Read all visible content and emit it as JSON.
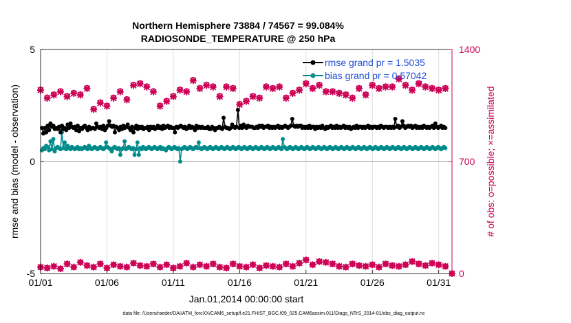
{
  "chart_data": {
    "type": "line",
    "title_line1": "Northern Hemisphere 73884 / 74567 = 99.084%",
    "title_line2": "RADIOSONDE_TEMPERATURE @ 250 hPa",
    "xlabel": "Jan.01,2014 00:00:00 start",
    "ylabel_left": "rmse and bias (model - observation)",
    "ylabel_right": "# of obs: o=possible; ×=assimilated",
    "footnote": "data file: /Users/raeder/DAI/ATM_forcXX/CAM6_setup/f.e21.FHIST_BGC.f09_025.CAM6assim.011/Diags_NTrS_2014-01/obs_diag_output.nc",
    "xlim": [
      1,
      32
    ],
    "ylim_left": [
      -5,
      5
    ],
    "ylim_right": [
      0,
      1400
    ],
    "x_ticks": [
      1,
      6,
      11,
      16,
      21,
      26,
      31
    ],
    "x_tick_labels": [
      "01/01",
      "01/06",
      "01/11",
      "01/16",
      "01/21",
      "01/26",
      "01/31"
    ],
    "y_left_ticks": [
      -5,
      0,
      5
    ],
    "y_left_tick_labels": [
      "-5",
      "0",
      "5"
    ],
    "y_right_ticks": [
      0,
      700,
      1400
    ],
    "y_right_tick_labels": [
      "0",
      "700",
      "1400"
    ],
    "grid": "vertical",
    "legend_position": "top-right",
    "colors": {
      "rmse": "#000000",
      "bias": "#008b8b",
      "obs": "#cc0055",
      "axis_right": "#cc0055",
      "legend_text": "#1f4fd8",
      "zero_line": "#999999"
    },
    "series": [
      {
        "name": "rmse grand pr = 1.5035",
        "axis": "left",
        "values": [
          1.5,
          1.25,
          1.5,
          1.3,
          1.6,
          1.4,
          1.7,
          1.55,
          1.6,
          1.45,
          1.5,
          1.45,
          1.55,
          1.3,
          1.6,
          1.45,
          1.5,
          1.4,
          1.65,
          1.5,
          1.7,
          1.55,
          1.5,
          1.55,
          1.4,
          1.6,
          1.35,
          1.5,
          1.45,
          1.55,
          1.6,
          1.5,
          1.4,
          1.55,
          1.45,
          1.5,
          1.5,
          1.45,
          1.7,
          1.55,
          1.5,
          1.55,
          1.45,
          1.6,
          1.4,
          1.5,
          1.6,
          1.8,
          1.6,
          1.55,
          1.6,
          1.3,
          1.55,
          1.5,
          1.4,
          1.55,
          1.45,
          1.6,
          1.5,
          1.55,
          1.65,
          1.5,
          1.4,
          1.55,
          1.3,
          1.5,
          1.6,
          1.45,
          1.55,
          1.5,
          1.55,
          1.45,
          1.5,
          1.5,
          1.55,
          1.4,
          1.55,
          1.5,
          1.55,
          1.45,
          1.5,
          1.6,
          1.5,
          1.55,
          1.45,
          1.6,
          1.5,
          1.55,
          1.6,
          1.5,
          1.55,
          1.5,
          1.5,
          1.3,
          1.55,
          1.5,
          1.55,
          1.6,
          1.55,
          1.5,
          1.55,
          1.45,
          1.5,
          1.6,
          1.5,
          1.55,
          1.5,
          1.4,
          1.6,
          1.5,
          1.55,
          1.5,
          1.55,
          1.5,
          1.5,
          1.5,
          1.55,
          1.45,
          1.45,
          1.55,
          1.5,
          1.4,
          1.5,
          1.5,
          1.55,
          1.5,
          1.45,
          1.95,
          1.55,
          1.5,
          1.5,
          1.45,
          1.5,
          1.65,
          1.55,
          1.5,
          1.55,
          2.3,
          1.5,
          1.6,
          1.5,
          1.65,
          1.55,
          1.5,
          1.6,
          1.55,
          1.55,
          1.55,
          1.5,
          1.5,
          1.55,
          1.5,
          1.6,
          1.55,
          1.6,
          1.5,
          1.55,
          1.55,
          1.6,
          1.5,
          1.55,
          1.5,
          1.55,
          1.5,
          1.55,
          1.6,
          1.5,
          1.55,
          1.5,
          1.55,
          1.6,
          1.55,
          1.5,
          1.55,
          1.6,
          1.9,
          1.6,
          1.55,
          1.6,
          1.55,
          1.6,
          1.6,
          1.5,
          1.55,
          1.5,
          1.55,
          1.5,
          1.6,
          1.5,
          1.55,
          1.55,
          1.45,
          1.55,
          1.5,
          1.55,
          1.5,
          1.6,
          1.5,
          1.45,
          1.55,
          1.5,
          1.55,
          1.6,
          1.5,
          1.55,
          1.5,
          1.6,
          1.5,
          1.55,
          1.5,
          1.55,
          1.6,
          1.5,
          1.55,
          1.5,
          1.55,
          1.45,
          1.5,
          1.55,
          1.5,
          1.6,
          1.5,
          1.55,
          1.55,
          1.5,
          1.55,
          1.5,
          1.55,
          1.6,
          1.5,
          1.55,
          1.5,
          1.55,
          1.55,
          1.5,
          1.55,
          1.5,
          1.6,
          1.55,
          1.5,
          1.55,
          1.55,
          1.5,
          1.55,
          1.5,
          1.55,
          1.5,
          1.9,
          1.55,
          1.6,
          1.5,
          1.55,
          1.8,
          1.6,
          1.5,
          1.55,
          1.6,
          1.55,
          1.6,
          1.5,
          1.55,
          1.6,
          1.5,
          1.55,
          1.5,
          1.55,
          1.5,
          1.6,
          1.55,
          1.5,
          1.55,
          1.5,
          1.55,
          1.6,
          1.5,
          1.7,
          1.55,
          1.5,
          1.55,
          1.6,
          1.5,
          1.55,
          1.5
        ]
      },
      {
        "name": "bias grand pr = 0.57042",
        "axis": "left",
        "values": [
          0.5,
          0.6,
          0.55,
          0.7,
          0.65,
          0.5,
          0.9,
          0.55,
          1.0,
          0.45,
          0.6,
          0.65,
          0.6,
          0.55,
          1.3,
          0.6,
          0.85,
          0.55,
          0.7,
          0.6,
          0.55,
          0.65,
          0.6,
          0.55,
          0.6,
          0.65,
          0.55,
          0.6,
          0.55,
          0.6,
          0.65,
          0.6,
          0.55,
          0.7,
          0.6,
          0.55,
          0.6,
          0.65,
          0.6,
          0.55,
          0.6,
          0.65,
          0.6,
          0.55,
          0.6,
          0.85,
          0.65,
          0.6,
          0.55,
          0.45,
          0.6,
          0.65,
          0.6,
          0.55,
          0.6,
          0.3,
          0.55,
          0.6,
          0.9,
          0.55,
          0.6,
          0.65,
          0.6,
          0.55,
          0.6,
          0.3,
          0.55,
          0.85,
          0.3,
          0.6,
          0.55,
          0.65,
          0.6,
          0.55,
          0.6,
          0.65,
          0.6,
          0.55,
          0.6,
          0.65,
          0.6,
          0.55,
          0.6,
          0.65,
          0.55,
          0.6,
          0.55,
          0.5,
          0.6,
          0.65,
          0.6,
          0.55,
          0.6,
          0.65,
          0.6,
          0.55,
          0.6,
          0.0,
          0.55,
          0.6,
          0.65,
          0.6,
          0.55,
          0.6,
          0.65,
          0.6,
          0.55,
          0.6,
          0.65,
          0.6,
          0.85,
          0.6,
          0.55,
          0.6,
          0.65,
          0.6,
          0.55,
          0.6,
          0.65,
          0.6,
          0.55,
          0.6,
          0.65,
          0.6,
          0.55,
          0.6,
          0.65,
          0.6,
          0.55,
          0.6,
          0.65,
          0.6,
          0.55,
          0.6,
          0.65,
          0.6,
          0.55,
          0.6,
          0.65,
          0.6,
          0.55,
          0.6,
          0.65,
          0.6,
          0.55,
          0.6,
          0.65,
          0.6,
          0.55,
          0.6,
          0.65,
          0.6,
          0.55,
          0.6,
          0.65,
          0.6,
          0.55,
          0.6,
          0.65,
          0.6,
          0.55,
          0.6,
          0.65,
          0.6,
          0.55,
          0.6,
          0.65,
          0.6,
          0.55,
          1.0,
          0.65,
          0.6,
          0.55,
          0.6,
          0.65,
          0.6,
          0.55,
          0.6,
          0.65,
          0.6,
          0.55,
          0.6,
          0.65,
          0.6,
          0.55,
          0.6,
          0.65,
          0.6,
          0.55,
          0.6,
          0.65,
          0.6,
          0.55,
          0.6,
          0.65,
          0.6,
          0.55,
          0.6,
          0.65,
          0.6,
          0.55,
          0.6,
          0.65,
          0.6,
          0.55,
          0.6,
          0.65,
          0.6,
          0.55,
          0.6,
          0.65,
          0.6,
          0.55,
          0.6,
          0.65,
          0.6,
          0.55,
          0.6,
          0.65,
          0.6,
          0.55,
          0.6,
          0.65,
          0.6,
          0.55,
          0.6,
          0.65,
          0.6,
          0.55,
          0.6,
          0.65,
          0.6,
          0.55,
          0.6,
          0.65,
          0.6,
          0.55,
          0.6,
          0.65,
          0.6,
          0.55,
          0.6,
          0.65,
          0.6,
          0.55,
          0.6,
          0.65,
          0.6,
          0.55,
          0.6,
          0.65,
          0.6,
          0.55,
          0.6,
          0.65,
          0.6,
          0.55,
          0.6,
          0.65,
          0.6,
          0.55,
          0.6,
          0.65,
          0.6,
          0.55,
          0.6,
          0.65,
          0.6,
          0.55,
          0.6,
          0.65,
          0.6,
          0.55,
          0.6,
          0.65,
          0.6,
          0.55,
          0.6,
          0.65,
          0.6,
          0.55,
          0.6,
          0.65,
          0.6
        ]
      }
    ],
    "obs_counts": {
      "axis": "right",
      "x": [
        1.0,
        1.5,
        2.0,
        2.5,
        3.0,
        3.5,
        4.0,
        4.5,
        5.0,
        5.5,
        6.0,
        6.5,
        7.0,
        7.5,
        8.0,
        8.5,
        9.0,
        9.5,
        10.0,
        10.5,
        11.0,
        11.5,
        12.0,
        12.5,
        13.0,
        13.5,
        14.0,
        14.5,
        15.0,
        15.5,
        16.0,
        16.5,
        17.0,
        17.5,
        18.0,
        18.5,
        19.0,
        19.5,
        20.0,
        20.5,
        21.0,
        21.5,
        22.0,
        22.5,
        23.0,
        23.5,
        24.0,
        24.5,
        25.0,
        25.5,
        26.0,
        26.5,
        27.0,
        27.5,
        28.0,
        28.5,
        29.0,
        29.5,
        30.0,
        30.5,
        31.0,
        31.5
      ],
      "possible": [
        1150,
        1100,
        1120,
        1140,
        1110,
        1130,
        1120,
        1160,
        1030,
        1070,
        1050,
        1100,
        1140,
        1090,
        1180,
        1190,
        1170,
        1140,
        1050,
        1080,
        1110,
        1150,
        1140,
        1210,
        1160,
        1180,
        1170,
        1110,
        1170,
        1160,
        1060,
        1080,
        1110,
        1100,
        1170,
        1160,
        1170,
        1100,
        1130,
        1150,
        1190,
        1160,
        1180,
        1140,
        1140,
        1130,
        1120,
        1100,
        1160,
        1120,
        1180,
        1160,
        1170,
        1170,
        1220,
        1180,
        1150,
        1190,
        1170,
        1160,
        1150,
        1160
      ],
      "assimilated": [
        1145,
        1095,
        1115,
        1135,
        1105,
        1125,
        1115,
        1155,
        1025,
        1065,
        1045,
        1095,
        1135,
        1085,
        1175,
        1185,
        1165,
        1135,
        1045,
        1075,
        1105,
        1145,
        1135,
        1205,
        1155,
        1175,
        1165,
        1105,
        1165,
        1155,
        1055,
        1075,
        1105,
        1095,
        1165,
        1155,
        1165,
        1095,
        1125,
        1145,
        1185,
        1155,
        1175,
        1135,
        1135,
        1125,
        1115,
        1095,
        1155,
        1115,
        1175,
        1155,
        1165,
        1165,
        1215,
        1175,
        1145,
        1185,
        1165,
        1155,
        1145,
        1155
      ],
      "low_x": [
        1.0,
        1.5,
        2.0,
        2.5,
        3.0,
        3.5,
        4.0,
        4.5,
        5.0,
        5.5,
        6.0,
        6.5,
        7.0,
        7.5,
        8.0,
        8.5,
        9.0,
        9.5,
        10.0,
        10.5,
        11.0,
        11.5,
        12.0,
        12.5,
        13.0,
        13.5,
        14.0,
        14.5,
        15.0,
        15.5,
        16.0,
        16.5,
        17.0,
        17.5,
        18.0,
        18.5,
        19.0,
        19.5,
        20.0,
        20.5,
        21.0,
        21.5,
        22.0,
        22.5,
        23.0,
        23.5,
        24.0,
        24.5,
        25.0,
        25.5,
        26.0,
        26.5,
        27.0,
        27.5,
        28.0,
        28.5,
        29.0,
        29.5,
        30.0,
        30.5,
        31.0,
        31.5,
        32.0
      ],
      "low_values": [
        40,
        35,
        45,
        30,
        60,
        40,
        70,
        50,
        40,
        60,
        35,
        55,
        45,
        40,
        65,
        50,
        45,
        60,
        40,
        55,
        35,
        45,
        65,
        40,
        55,
        45,
        60,
        40,
        35,
        60,
        45,
        40,
        55,
        35,
        50,
        45,
        40,
        60,
        45,
        65,
        85,
        55,
        75,
        70,
        60,
        45,
        40,
        60,
        50,
        45,
        55,
        40,
        60,
        50,
        45,
        55,
        75,
        60,
        50,
        65,
        55,
        45,
        0
      ]
    }
  }
}
